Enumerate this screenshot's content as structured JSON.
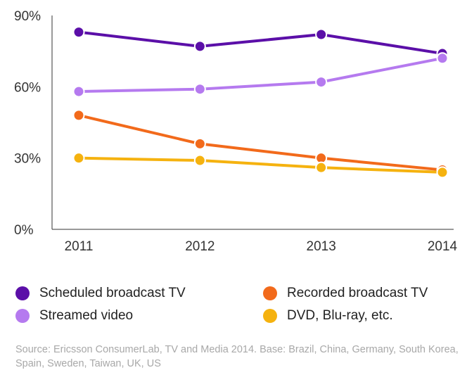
{
  "chart_data": {
    "type": "line",
    "title": "",
    "xlabel": "",
    "ylabel": "",
    "categories": [
      "2011",
      "2012",
      "2013",
      "2014"
    ],
    "ylim": [
      0,
      90
    ],
    "yticks": [
      0,
      30,
      60,
      90
    ],
    "ytick_labels": [
      "0%",
      "30%",
      "60%",
      "90%"
    ],
    "grid": false,
    "legend_position": "bottom",
    "series": [
      {
        "name": "Scheduled broadcast TV",
        "color": "#5b0fa8",
        "values": [
          83,
          77,
          82,
          74
        ]
      },
      {
        "name": "Streamed video",
        "color": "#b57aef",
        "values": [
          58,
          59,
          62,
          72
        ]
      },
      {
        "name": "Recorded broadcast TV",
        "color": "#f26a1b",
        "values": [
          48,
          36,
          30,
          25
        ]
      },
      {
        "name": "DVD, Blu-ray, etc.",
        "color": "#f5b20f",
        "values": [
          30,
          29,
          26,
          24
        ]
      }
    ]
  },
  "legend": [
    {
      "label": "Scheduled broadcast TV",
      "color": "#5b0fa8"
    },
    {
      "label": "Recorded broadcast TV",
      "color": "#f26a1b"
    },
    {
      "label": "Streamed video",
      "color": "#b57aef"
    },
    {
      "label": "DVD, Blu-ray, etc.",
      "color": "#f5b20f"
    }
  ],
  "source": "Source: Ericsson ConsumerLab, TV and Media 2014. Base: Brazil, China, Germany, South Korea, Spain, Sweden, Taiwan, UK, US"
}
